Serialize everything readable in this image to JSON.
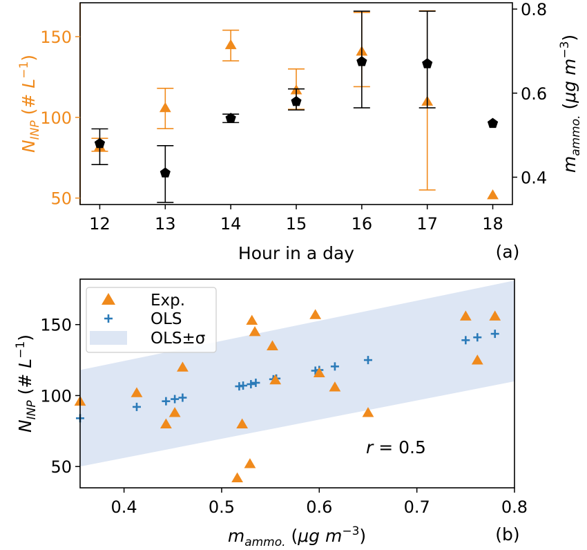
{
  "colors": {
    "orange": "#f08a1c",
    "black": "#000000",
    "blue": "#2a7ab8",
    "band": "#dde6f4"
  },
  "chart_data": [
    {
      "panel": "(a)",
      "type": "scatter",
      "xlabel": "Hour in a day",
      "ylabel_left": "N_INP (# L^-1)",
      "ylabel_right": "m_ammo. (μg m^-3)",
      "x_ticks": [
        "12",
        "13",
        "14",
        "15",
        "16",
        "17",
        "18"
      ],
      "y_left_ticks": [
        "50",
        "100",
        "150"
      ],
      "y_right_ticks": [
        "0.4",
        "0.6",
        "0.8"
      ],
      "xlim": [
        11.7,
        18.3
      ],
      "ylim_left": [
        46,
        171
      ],
      "ylim_right": [
        0.335,
        0.815
      ],
      "grid": false,
      "series": [
        {
          "axis": "left",
          "marker": "triangle",
          "color_key": "orange",
          "points": [
            {
              "x": 12,
              "y": 82,
              "low": 79,
              "high": 87
            },
            {
              "x": 13,
              "y": 106,
              "low": 93,
              "high": 118
            },
            {
              "x": 14,
              "y": 145,
              "low": 135,
              "high": 154
            },
            {
              "x": 15,
              "y": 117,
              "low": 105,
              "high": 130
            },
            {
              "x": 16,
              "y": 141,
              "low": 119,
              "high": 165
            },
            {
              "x": 17,
              "y": 110,
              "low": 55,
              "high": 166
            },
            {
              "x": 18,
              "y": 52,
              "low": null,
              "high": null
            }
          ]
        },
        {
          "axis": "right",
          "marker": "pentagon",
          "color_key": "black",
          "points": [
            {
              "x": 12,
              "y": 0.48,
              "low": 0.43,
              "high": 0.515
            },
            {
              "x": 13,
              "y": 0.41,
              "low": 0.34,
              "high": 0.475
            },
            {
              "x": 14,
              "y": 0.54,
              "low": 0.53,
              "high": 0.55
            },
            {
              "x": 15,
              "y": 0.58,
              "low": 0.56,
              "high": 0.61
            },
            {
              "x": 16,
              "y": 0.675,
              "low": 0.565,
              "high": 0.795
            },
            {
              "x": 17,
              "y": 0.67,
              "low": 0.565,
              "high": 0.795
            },
            {
              "x": 18,
              "y": 0.528,
              "low": null,
              "high": null
            }
          ]
        }
      ]
    },
    {
      "panel": "(b)",
      "type": "scatter",
      "xlabel": "m_ammo. (μg m^-3)",
      "ylabel": "N_INP (# L^-1)",
      "x_ticks": [
        "0.4",
        "0.5",
        "0.6",
        "0.7",
        "0.8"
      ],
      "y_ticks": [
        "50",
        "100",
        "150"
      ],
      "xlim": [
        0.355,
        0.8
      ],
      "ylim": [
        35,
        182
      ],
      "grid": false,
      "legend_position": "top-left",
      "annotation": "r = 0.5",
      "series": [
        {
          "name": "Exp.",
          "marker": "triangle",
          "color_key": "orange",
          "points": [
            [
              0.355,
              96
            ],
            [
              0.413,
              102
            ],
            [
              0.443,
              80
            ],
            [
              0.452,
              88
            ],
            [
              0.46,
              120
            ],
            [
              0.516,
              42
            ],
            [
              0.521,
              80
            ],
            [
              0.529,
              52
            ],
            [
              0.531,
              153
            ],
            [
              0.534,
              145
            ],
            [
              0.552,
              135
            ],
            [
              0.555,
              111
            ],
            [
              0.596,
              157
            ],
            [
              0.6,
              116
            ],
            [
              0.616,
              106
            ],
            [
              0.65,
              88
            ],
            [
              0.75,
              156
            ],
            [
              0.762,
              125
            ],
            [
              0.78,
              156
            ]
          ]
        },
        {
          "name": "OLS",
          "marker": "plus",
          "color_key": "blue",
          "points": [
            [
              0.355,
              84
            ],
            [
              0.413,
              92
            ],
            [
              0.443,
              96
            ],
            [
              0.452,
              97.5
            ],
            [
              0.46,
              98.5
            ],
            [
              0.518,
              106.5
            ],
            [
              0.522,
              107
            ],
            [
              0.53,
              108
            ],
            [
              0.535,
              109
            ],
            [
              0.553,
              111.5
            ],
            [
              0.556,
              112
            ],
            [
              0.596,
              117.5
            ],
            [
              0.6,
              118
            ],
            [
              0.616,
              120.5
            ],
            [
              0.65,
              125
            ],
            [
              0.75,
              139
            ],
            [
              0.762,
              141
            ],
            [
              0.78,
              143.5
            ]
          ]
        },
        {
          "name": "OLS±σ",
          "type": "band",
          "color_key": "band",
          "band": {
            "x0": 0.355,
            "lower0": 50,
            "upper0": 118,
            "x1": 0.8,
            "lower1": 110,
            "upper1": 181
          }
        }
      ]
    }
  ]
}
